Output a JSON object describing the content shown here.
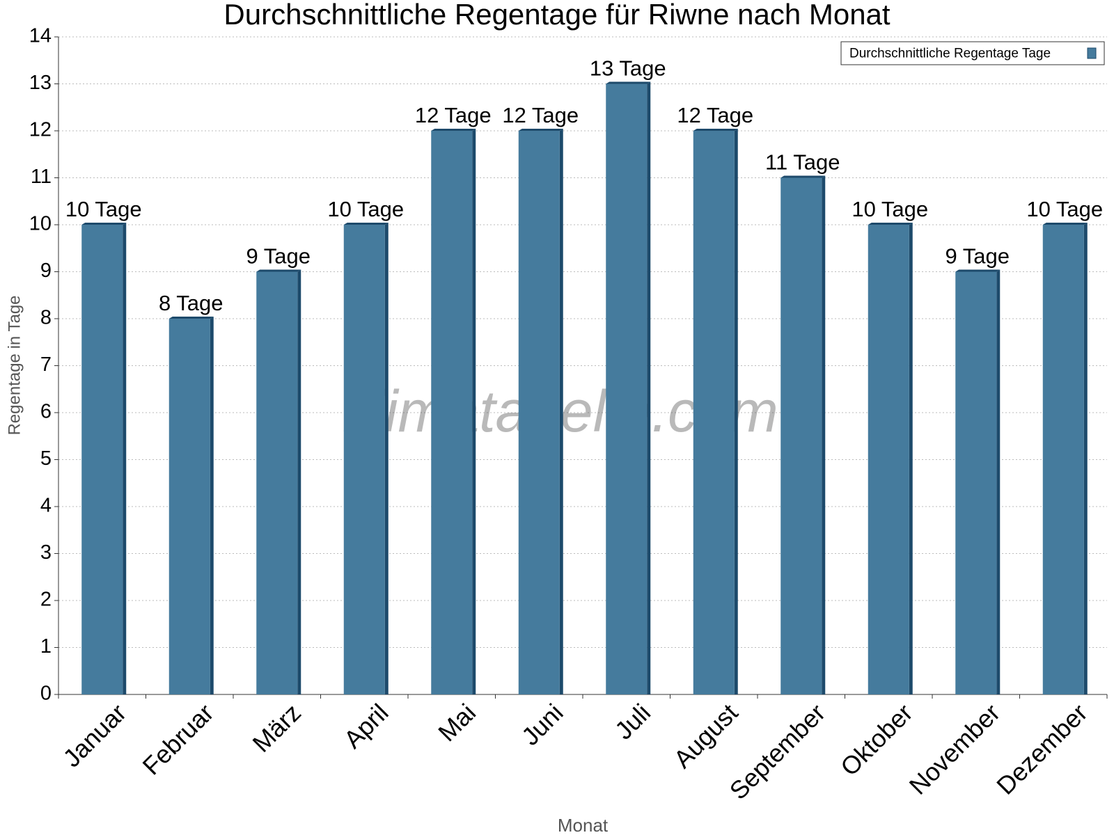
{
  "chart_data": {
    "type": "bar",
    "title": "Durchschnittliche Regentage für Riwne nach Monat",
    "x_label": "Monat",
    "y_label": "Regentage in Tage",
    "watermark": "klimatabelle.com",
    "legend_position": "top-right",
    "grid": true,
    "categories": [
      "Januar",
      "Februar",
      "März",
      "April",
      "Mai",
      "Juni",
      "Juli",
      "August",
      "September",
      "Oktober",
      "November",
      "Dezember"
    ],
    "series": [
      {
        "name": "Durchschnittliche Regentage Tage",
        "color": "#457b9d",
        "values": [
          10,
          8,
          9,
          10,
          12,
          12,
          13,
          12,
          11,
          10,
          9,
          10
        ],
        "value_labels": [
          "10 Tage",
          "8 Tage",
          "9 Tage",
          "10 Tage",
          "12 Tage",
          "12 Tage",
          "13 Tage",
          "12 Tage",
          "11 Tage",
          "10 Tage",
          "9 Tage",
          "10 Tage"
        ]
      }
    ],
    "ylim": [
      0,
      14
    ],
    "yticks": [
      0,
      1,
      2,
      3,
      4,
      5,
      6,
      7,
      8,
      9,
      10,
      11,
      12,
      13,
      14
    ]
  }
}
